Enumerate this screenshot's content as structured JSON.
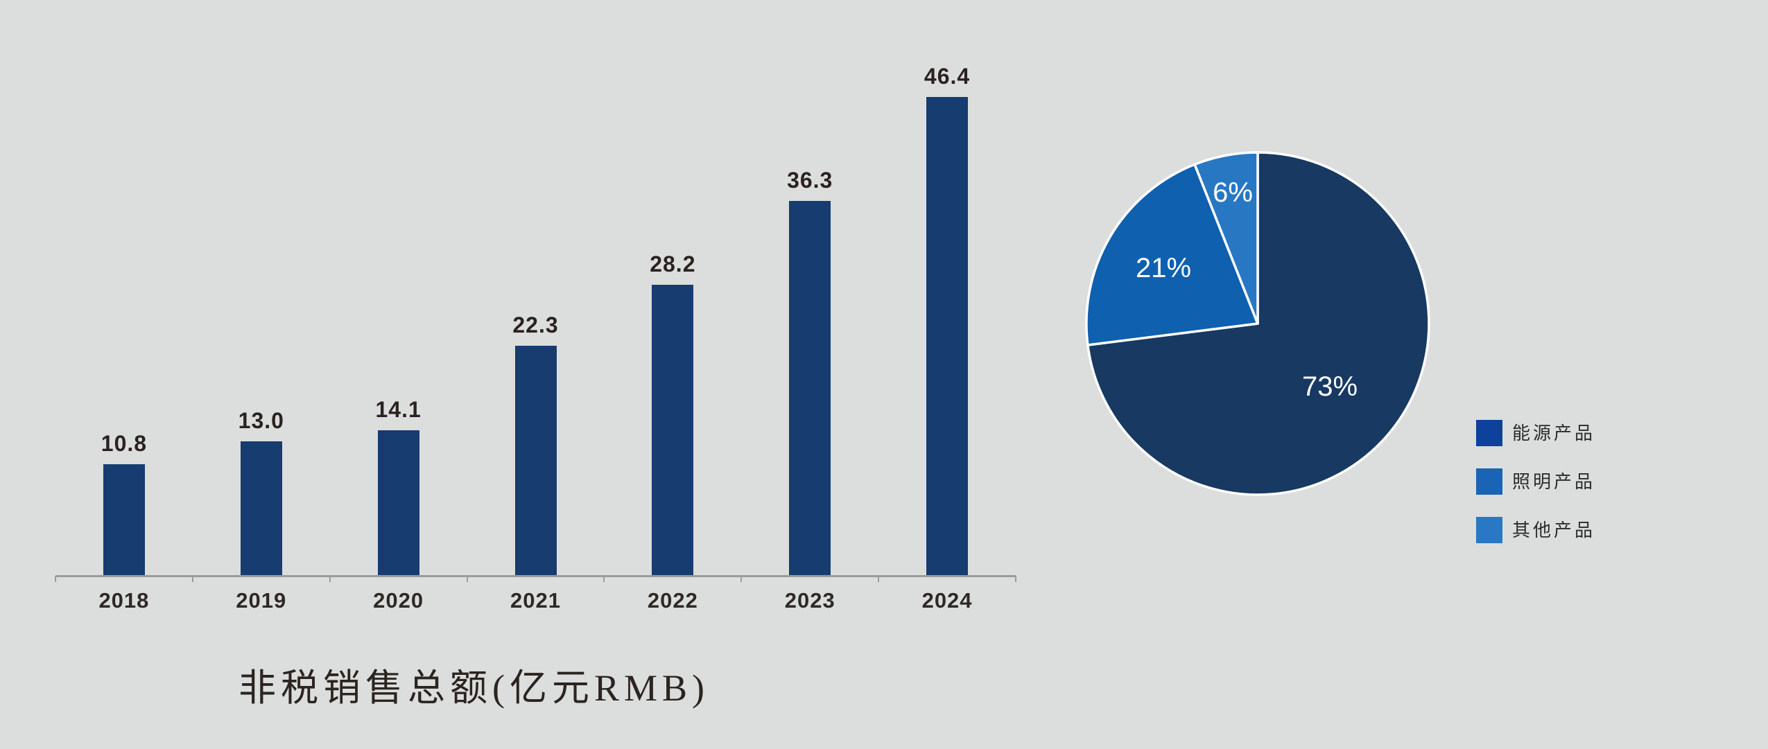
{
  "page": {
    "background_color": "#dcdedd",
    "text_color_dark": "#2a2522"
  },
  "chart_data": [
    {
      "type": "bar",
      "title": "非税销售总额(亿元RMB)",
      "unit": "亿元RMB",
      "categories": [
        "2018",
        "2019",
        "2020",
        "2021",
        "2022",
        "2023",
        "2024"
      ],
      "values": [
        10.8,
        13.0,
        14.1,
        22.3,
        28.2,
        36.3,
        46.4
      ],
      "value_labels": [
        "10.8",
        "13.0",
        "14.1",
        "22.3",
        "28.2",
        "36.3",
        "46.4"
      ],
      "ylim": [
        0,
        48
      ],
      "grid": false,
      "bar_color": "#163c70",
      "value_label_color": "#2a2220",
      "category_label_color": "#2e2926",
      "axis_color": "#9b9b99",
      "title_color": "#2b2420"
    },
    {
      "type": "pie",
      "start_angle": "12-oclock",
      "direction": "clockwise",
      "label_color": "#ffffff",
      "legend_position": "right-of-pie",
      "legend_text_color": "#2b2b2b",
      "slice_border_color": "#ffffff",
      "slices": [
        {
          "label": "能源产品",
          "value": 73,
          "display": "73%",
          "color": "#173962",
          "legend_color": "#0d419b"
        },
        {
          "label": "照明产品",
          "value": 21,
          "display": "21%",
          "color": "#0f60ae",
          "legend_color": "#1a64b5"
        },
        {
          "label": "其他产品",
          "value": 6,
          "display": "6%",
          "color": "#2877c2",
          "legend_color": "#2878c3"
        }
      ]
    }
  ]
}
